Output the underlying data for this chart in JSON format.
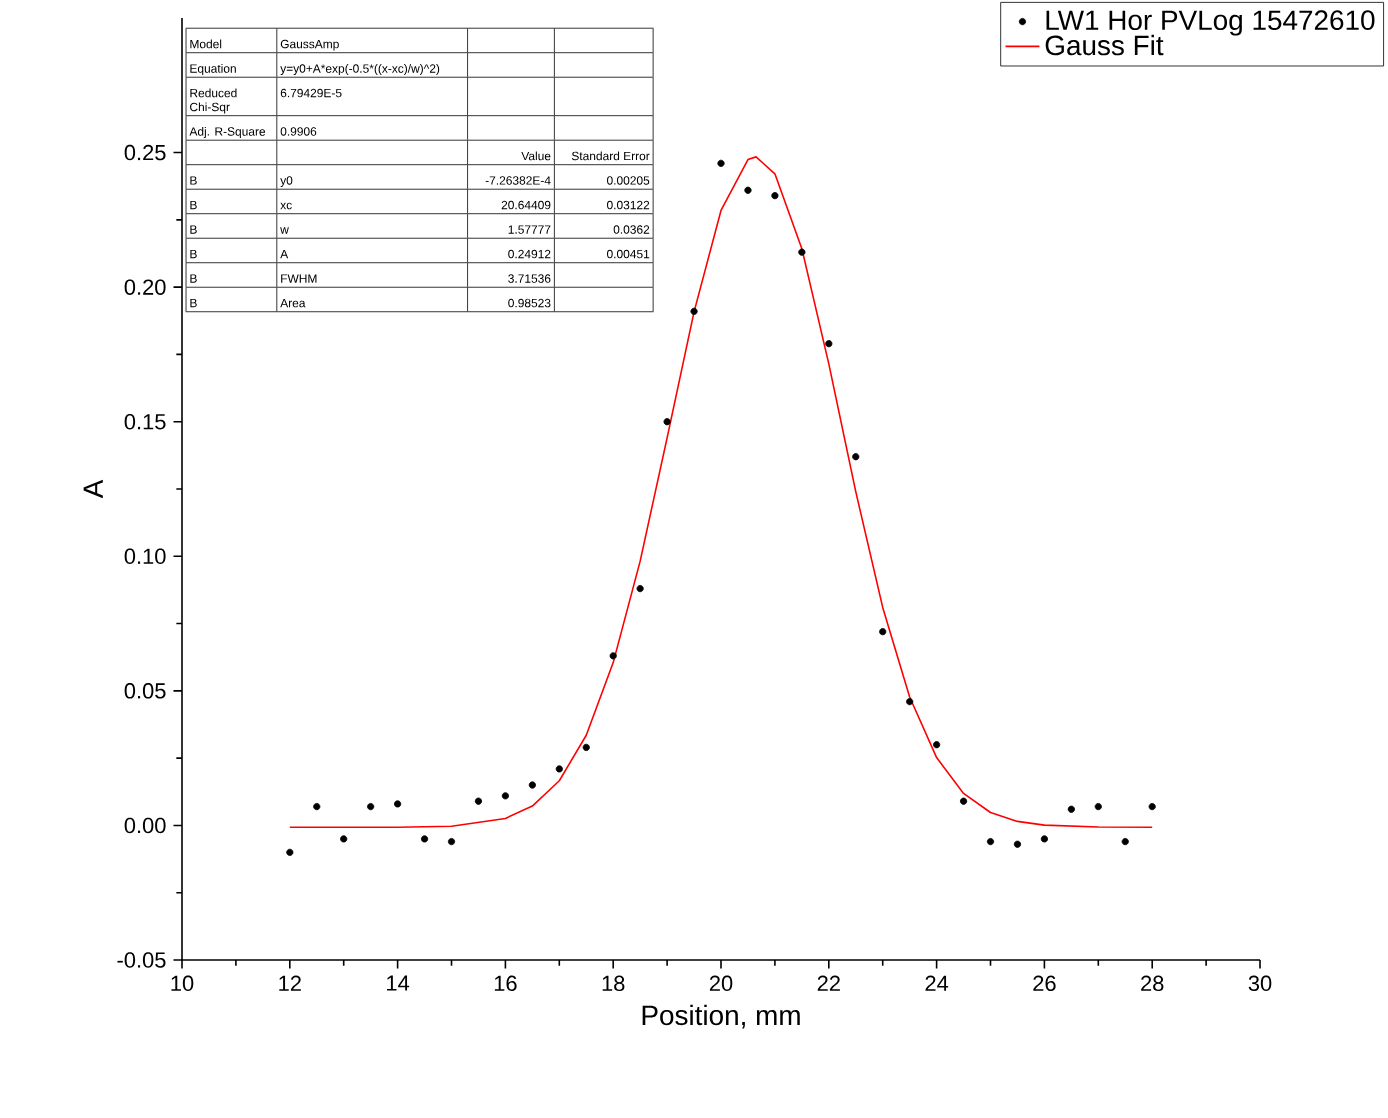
{
  "chart_data": {
    "type": "scatter",
    "xlabel": "Position, mm",
    "ylabel": "A",
    "xlim": [
      10,
      30
    ],
    "ylim": [
      -0.05,
      0.3
    ],
    "xticks": [
      10,
      12,
      14,
      16,
      18,
      20,
      22,
      24,
      26,
      28,
      30
    ],
    "yticks": [
      {
        "value": -0.05,
        "label": "-0.05"
      },
      {
        "value": 0,
        "label": "0.00"
      },
      {
        "value": 0.05,
        "label": "0.05"
      },
      {
        "value": 0.1,
        "label": "0.10"
      },
      {
        "value": 0.15,
        "label": "0.15"
      },
      {
        "value": 0.2,
        "label": "0.20"
      },
      {
        "value": 0.25,
        "label": "0.25"
      }
    ],
    "grid": false,
    "legend": "top right",
    "series": [
      {
        "name": "LW1 Hor PVLog 15472610",
        "marker": "circle",
        "color": "#000000",
        "x": [
          12,
          12.5,
          13,
          13.5,
          14,
          14.5,
          15,
          15.5,
          16,
          16.5,
          17,
          17.5,
          18,
          18.5,
          19,
          19.5,
          20,
          20.5,
          21,
          21.5,
          22,
          22.5,
          23,
          23.5,
          24,
          24.5,
          25,
          25.5,
          26,
          26.5,
          27,
          27.5,
          28
        ],
        "values": [
          -0.01,
          0.007,
          -0.005,
          0.007,
          0.008,
          -0.005,
          -0.006,
          0.009,
          0.011,
          0.015,
          0.021,
          0.029,
          0.063,
          0.088,
          0.15,
          0.191,
          0.246,
          0.236,
          0.234,
          0.213,
          0.179,
          0.137,
          0.072,
          0.046,
          0.03,
          0.009,
          -0.006,
          -0.007,
          -0.005,
          0.006,
          0.007,
          -0.006,
          0.007
        ]
      },
      {
        "name": "Gauss Fit",
        "type": "line",
        "marker": "none",
        "line_style": "solid",
        "color": "#ff0000",
        "x": [
          12,
          14,
          15,
          16,
          16.5,
          17,
          17.5,
          18,
          18.5,
          19,
          19.5,
          20,
          20.5,
          20.65,
          21,
          21.5,
          22,
          22.5,
          23,
          23.5,
          24,
          24.5,
          25,
          25.5,
          26,
          27,
          28
        ],
        "values": [
          -0.0007,
          -0.0007,
          -0.0003,
          0.0026,
          0.0072,
          0.0166,
          0.0335,
          0.0605,
          0.0982,
          0.144,
          0.1908,
          0.2285,
          0.2474,
          0.2484,
          0.2421,
          0.2143,
          0.1715,
          0.124,
          0.081,
          0.0477,
          0.0252,
          0.0119,
          0.0048,
          0.0015,
          0.0001,
          -0.0006,
          -0.0007
        ]
      }
    ],
    "annotations": [
      "Model",
      "GaussAmp",
      "Equation",
      "y=y0+A*exp(-0.5*((x-xc)/w)^2)",
      "Reduced Chi-Sqr",
      "6.79429E-5",
      "Adj. R-Square",
      "0.9906",
      "Value",
      "Standard Error",
      "B",
      "y0",
      "-7.26382E-4",
      "0.00205",
      "B",
      "xc",
      "20.64409",
      "0.03122",
      "B",
      "w",
      "1.57777",
      "0.0362",
      "B",
      "A",
      "0.24912",
      "0.00451",
      "B",
      "FWHM",
      "3.71536",
      "B",
      "Area",
      "0.98523"
    ]
  }
}
